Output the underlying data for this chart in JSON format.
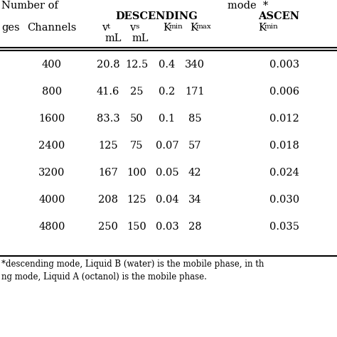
{
  "rows": [
    [
      "400",
      "20.8",
      "12.5",
      "0.4",
      "340",
      "0.003"
    ],
    [
      "800",
      "41.6",
      "25",
      "0.2",
      "171",
      "0.006"
    ],
    [
      "1600",
      "83.3",
      "50",
      "0.1",
      "85",
      "0.012"
    ],
    [
      "2400",
      "125",
      "75",
      "0.07",
      "57",
      "0.018"
    ],
    [
      "3200",
      "167",
      "100",
      "0.05",
      "42",
      "0.024"
    ],
    [
      "4000",
      "208",
      "125",
      "0.04",
      "34",
      "0.030"
    ],
    [
      "4800",
      "250",
      "150",
      "0.03",
      "28",
      "0.035"
    ]
  ],
  "bg_color": "#ffffff",
  "text_color": "#000000",
  "footnote1": "descending mode, Liquid B (water) is the mobile phase, in th",
  "footnote2": "ng mode, Liquid A (octanol) is the mobile phase."
}
